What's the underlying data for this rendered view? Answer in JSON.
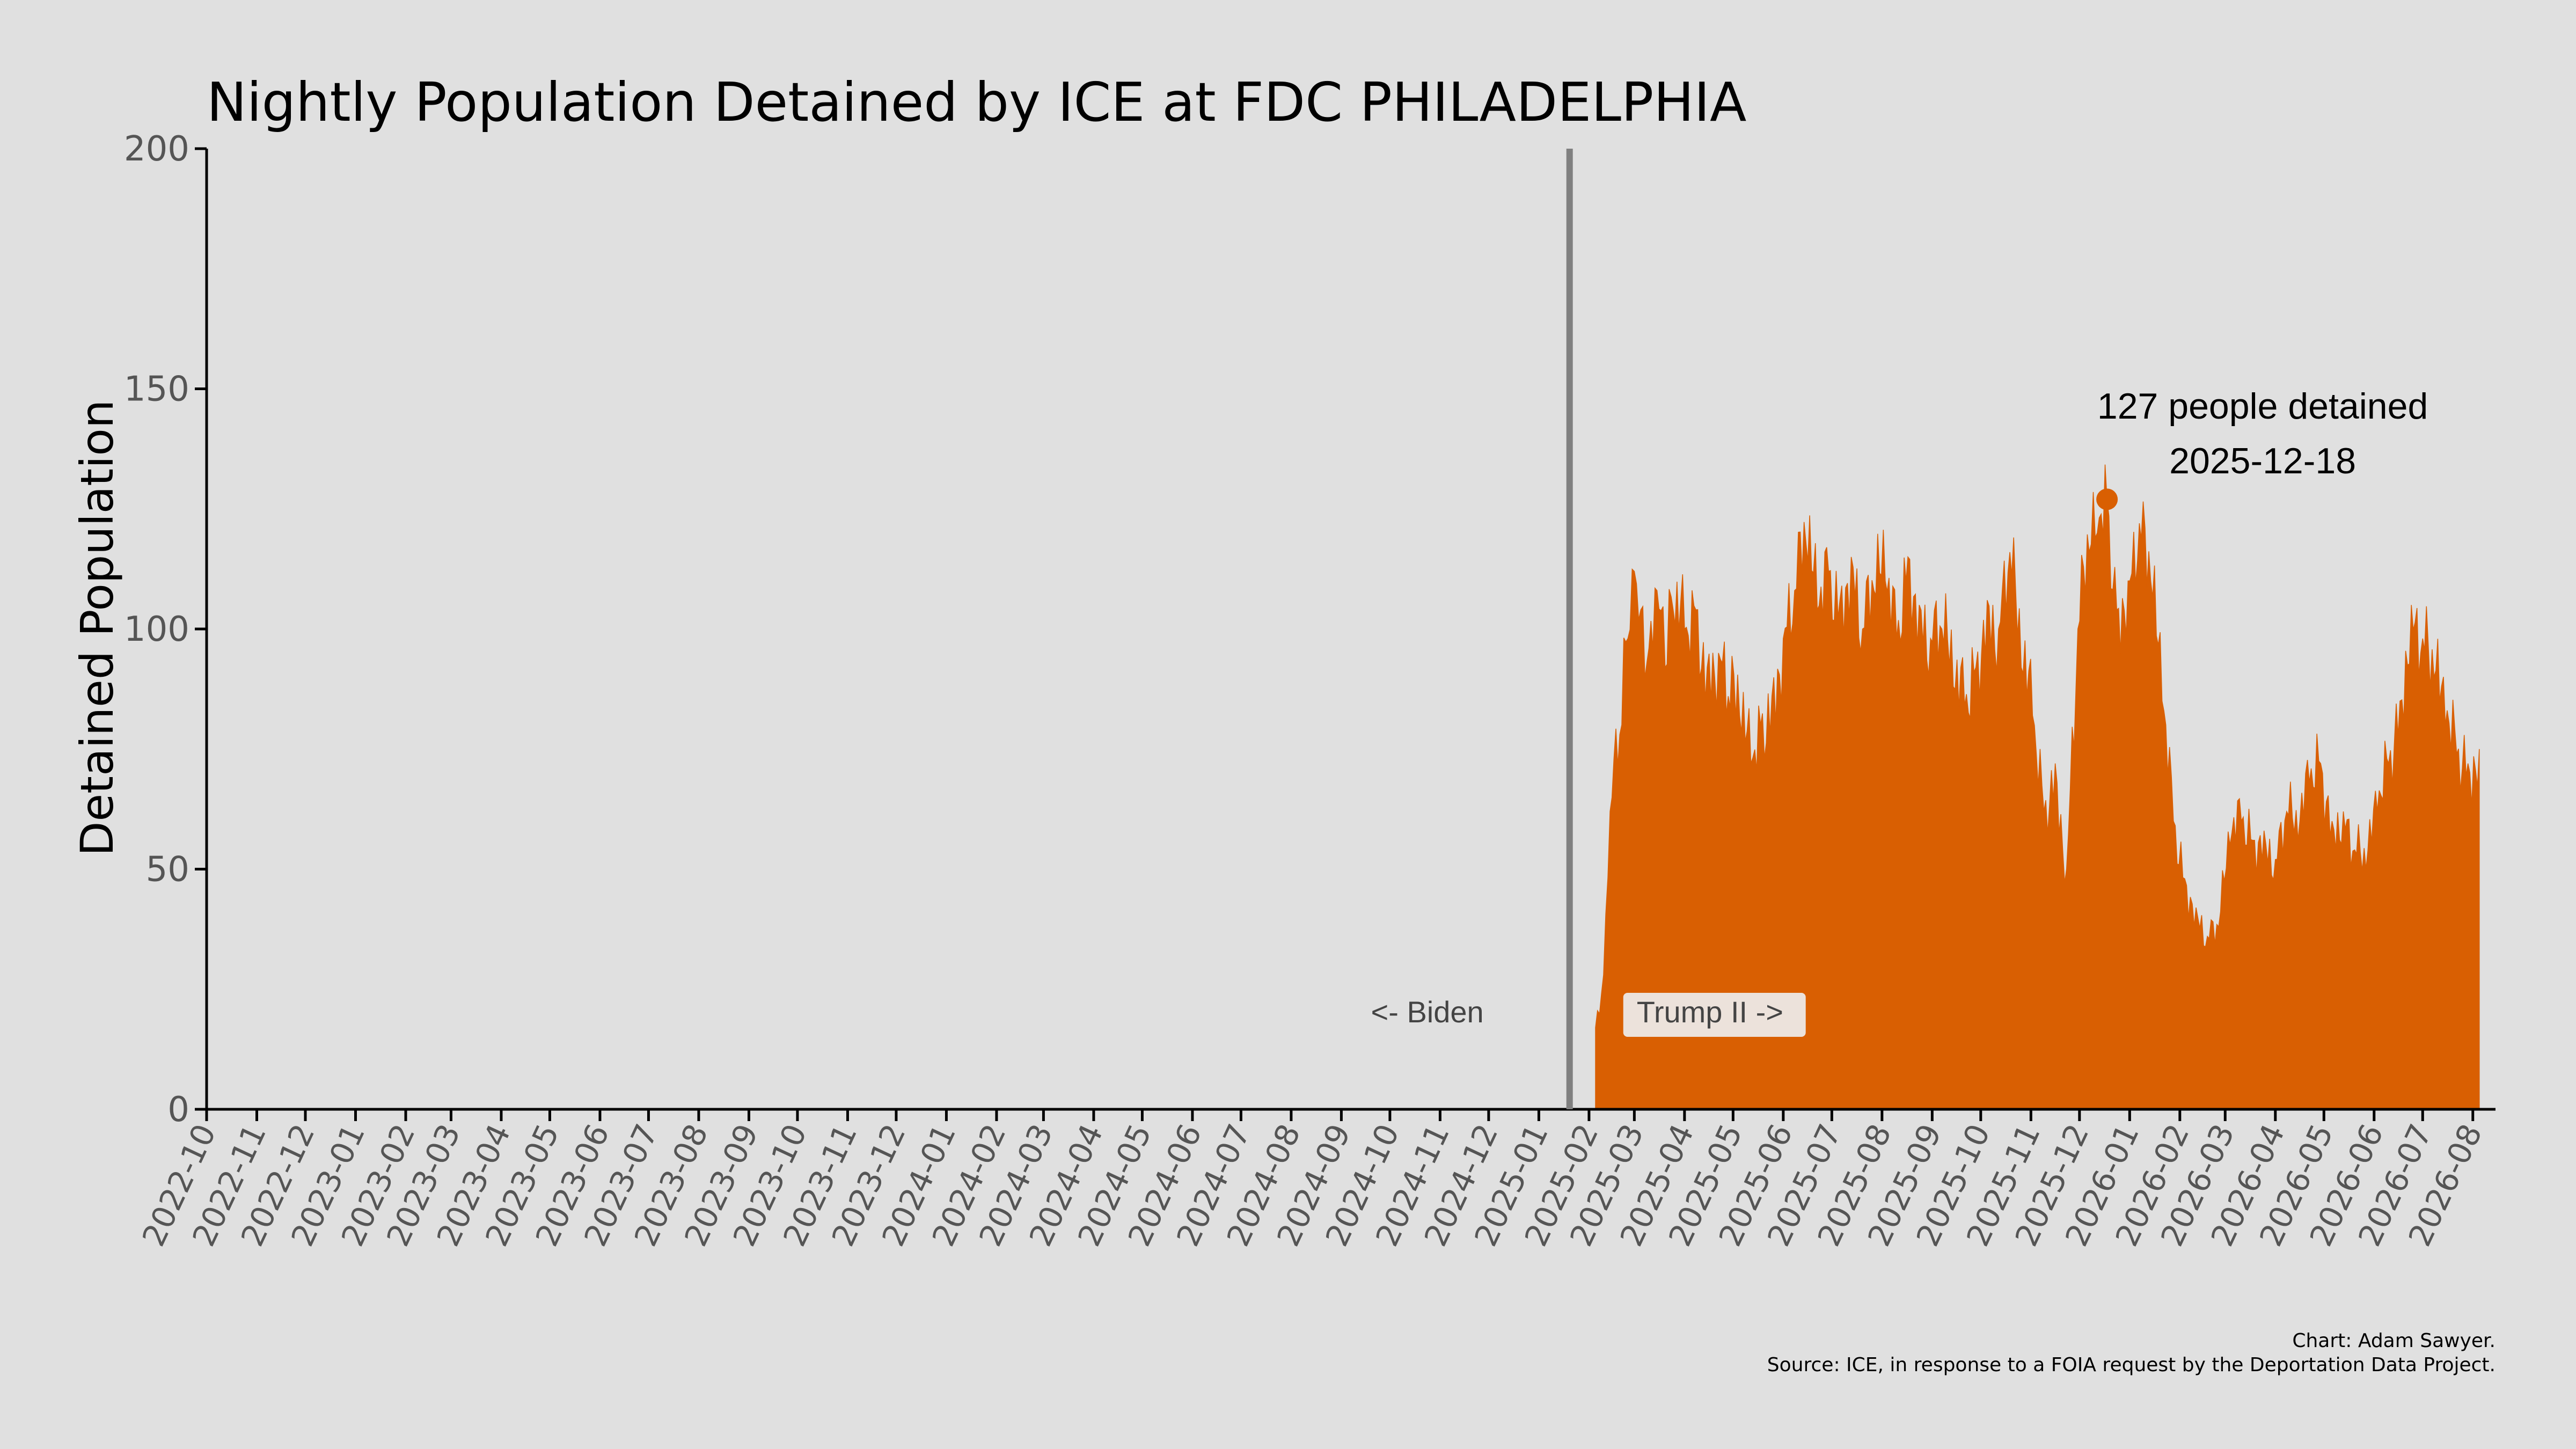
{
  "chart_data": {
    "type": "area",
    "title": "Nightly Population Detained by ICE at FDC PHILADELPHIA",
    "xlabel": "",
    "ylabel": "Detained Population",
    "ylim": [
      0,
      200
    ],
    "yticks": [
      "0",
      "50",
      "100",
      "150",
      "200"
    ],
    "xlim": [
      "2022-10-01",
      "2026-08-15"
    ],
    "xticks": [
      "2022-10",
      "2022-11",
      "2022-12",
      "2023-01",
      "2023-02",
      "2023-03",
      "2023-04",
      "2023-05",
      "2023-06",
      "2023-07",
      "2023-08",
      "2023-09",
      "2023-10",
      "2023-11",
      "2023-12",
      "2024-01",
      "2024-02",
      "2024-03",
      "2024-04",
      "2024-05",
      "2024-06",
      "2024-07",
      "2024-08",
      "2024-09",
      "2024-10",
      "2024-11",
      "2024-12",
      "2025-01",
      "2025-02",
      "2025-03",
      "2025-04",
      "2025-05",
      "2025-06",
      "2025-07",
      "2025-08",
      "2025-09",
      "2025-10",
      "2025-11",
      "2025-12",
      "2026-01",
      "2026-02",
      "2026-03",
      "2026-04",
      "2026-05",
      "2026-06",
      "2026-07",
      "2026-08"
    ],
    "grid": false,
    "color": "#d95f02",
    "divider": {
      "date": "2025-01-20",
      "color": "#808080"
    },
    "era_labels": {
      "left": "<- Biden",
      "right": "Trump II ->"
    },
    "peak": {
      "date": "2025-12-18",
      "value": 127,
      "line1": "127 people detained",
      "line2": "2025-12-18"
    },
    "series": [
      {
        "x": [
          "2025-02-05",
          "2025-02-10",
          "2025-02-14",
          "2025-02-20",
          "2025-02-25",
          "2025-03-01",
          "2025-03-05",
          "2025-03-10",
          "2025-03-15",
          "2025-03-20",
          "2025-03-25",
          "2025-04-01",
          "2025-04-08",
          "2025-04-15",
          "2025-04-22",
          "2025-04-28",
          "2025-05-05",
          "2025-05-12",
          "2025-05-18",
          "2025-05-25",
          "2025-06-01",
          "2025-06-08",
          "2025-06-15",
          "2025-06-22",
          "2025-06-29",
          "2025-07-06",
          "2025-07-13",
          "2025-07-20",
          "2025-07-27",
          "2025-08-03",
          "2025-08-10",
          "2025-08-17",
          "2025-08-24",
          "2025-08-31",
          "2025-09-07",
          "2025-09-14",
          "2025-09-21",
          "2025-09-28",
          "2025-10-05",
          "2025-10-12",
          "2025-10-19",
          "2025-10-26",
          "2025-11-02",
          "2025-11-09",
          "2025-11-16",
          "2025-11-23",
          "2025-11-30",
          "2025-12-07",
          "2025-12-12",
          "2025-12-18",
          "2025-12-24",
          "2025-12-31",
          "2026-01-07",
          "2026-01-14",
          "2026-01-21",
          "2026-01-28",
          "2026-02-04",
          "2026-02-11",
          "2026-02-18",
          "2026-02-25",
          "2026-03-04",
          "2026-03-11",
          "2026-03-18",
          "2026-03-25",
          "2026-04-01",
          "2026-04-08",
          "2026-04-15",
          "2026-04-22",
          "2026-04-29",
          "2026-05-06",
          "2026-05-13",
          "2026-05-20",
          "2026-05-27",
          "2026-06-03",
          "2026-06-10",
          "2026-06-17",
          "2026-06-24",
          "2026-07-01",
          "2026-07-08",
          "2026-07-15",
          "2026-07-22",
          "2026-07-29",
          "2026-08-05"
        ],
        "y": [
          17,
          28,
          62,
          78,
          98,
          112,
          104,
          96,
          108,
          92,
          104,
          100,
          104,
          92,
          95,
          86,
          82,
          72,
          80,
          86,
          98,
          108,
          118,
          104,
          112,
          106,
          115,
          100,
          108,
          110,
          98,
          115,
          105,
          98,
          100,
          88,
          84,
          92,
          106,
          100,
          116,
          92,
          82,
          62,
          72,
          50,
          100,
          116,
          120,
          127,
          104,
          110,
          122,
          110,
          85,
          60,
          48,
          42,
          36,
          38,
          55,
          60,
          56,
          58,
          52,
          62,
          56,
          68,
          72,
          60,
          62,
          54,
          50,
          62,
          72,
          85,
          105,
          98,
          90,
          80,
          74,
          72,
          75
        ]
      }
    ]
  },
  "credits": {
    "line1": "Chart: Adam Sawyer.",
    "line2": "Source: ICE, in response to a FOIA request by the Deportation Data Project."
  }
}
